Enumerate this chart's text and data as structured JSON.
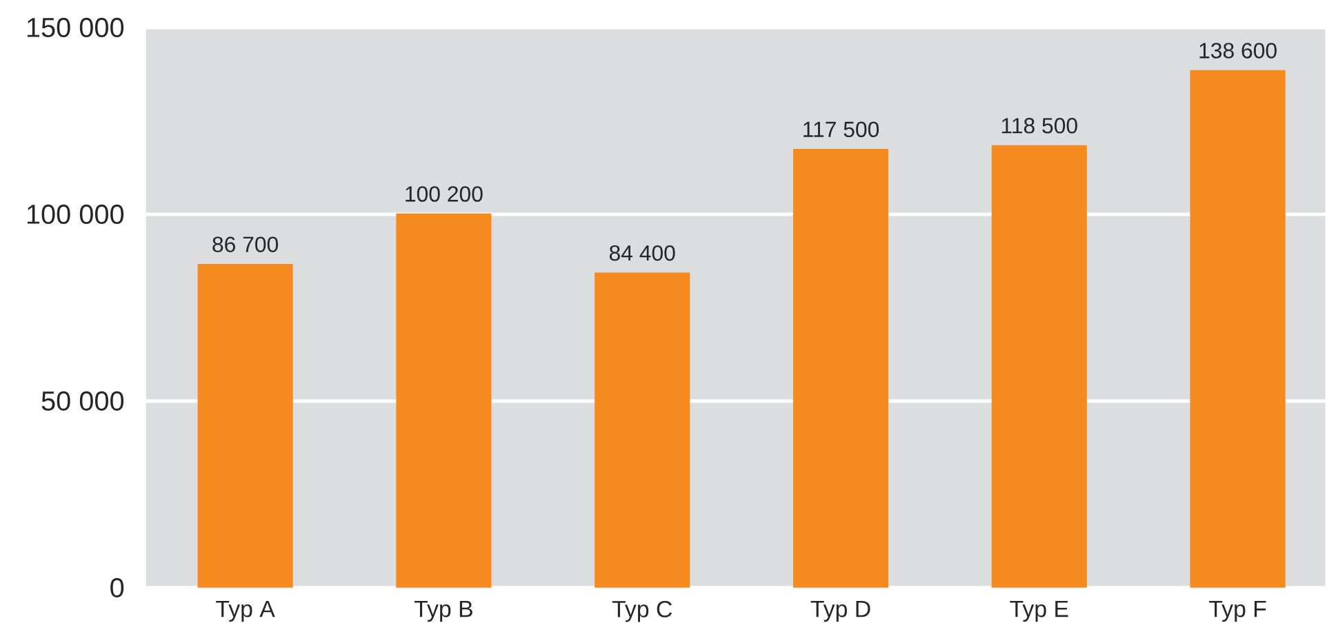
{
  "chart_data": {
    "type": "bar",
    "categories": [
      "Typ A",
      "Typ B",
      "Typ C",
      "Typ D",
      "Typ E",
      "Typ F"
    ],
    "values": [
      86700,
      100200,
      84400,
      117500,
      118500,
      138600
    ],
    "value_labels": [
      "86 700",
      "100 200",
      "84 400",
      "117 500",
      "118 500",
      "138 600"
    ],
    "color": "#f58b1f",
    "ylim": [
      0,
      150000
    ],
    "yticks": [
      0,
      {
        "value": 50000,
        "label": "50 000"
      },
      {
        "value": 100000,
        "label": "100 000"
      },
      {
        "value": 150000,
        "label": "150 000"
      }
    ],
    "grid": "y"
  }
}
